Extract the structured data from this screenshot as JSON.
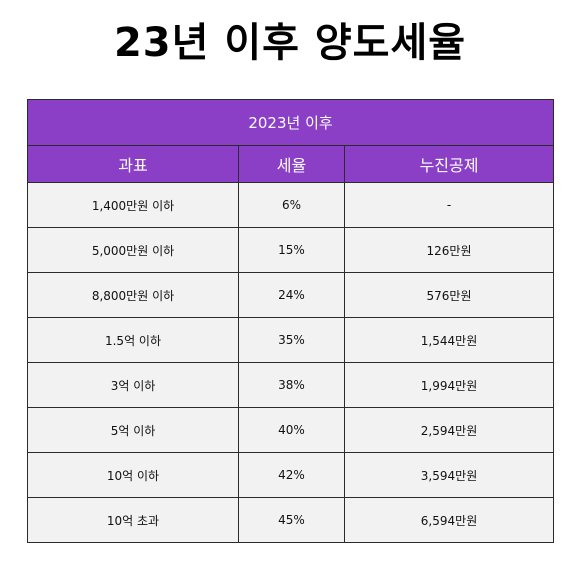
{
  "title": "23년 이후 양도세율",
  "table": {
    "caption": "2023년 이후",
    "headers": [
      "과표",
      "세율",
      "누진공제"
    ],
    "rows": [
      [
        "1,400만원 이하",
        "6%",
        "-"
      ],
      [
        "5,000만원 이하",
        "15%",
        "126만원"
      ],
      [
        "8,800만원 이하",
        "24%",
        "576만원"
      ],
      [
        "1.5억 이하",
        "35%",
        "1,544만원"
      ],
      [
        "3억 이하",
        "38%",
        "1,994만원"
      ],
      [
        "5억 이하",
        "40%",
        "2,594만원"
      ],
      [
        "10억 이하",
        "42%",
        "3,594만원"
      ],
      [
        "10억 초과",
        "45%",
        "6,594만원"
      ]
    ]
  },
  "colors": {
    "header_background": "#8b3fc7",
    "header_text": "#ffffff",
    "row_background": "#f2f2f2",
    "border": "#2b2b2b"
  }
}
